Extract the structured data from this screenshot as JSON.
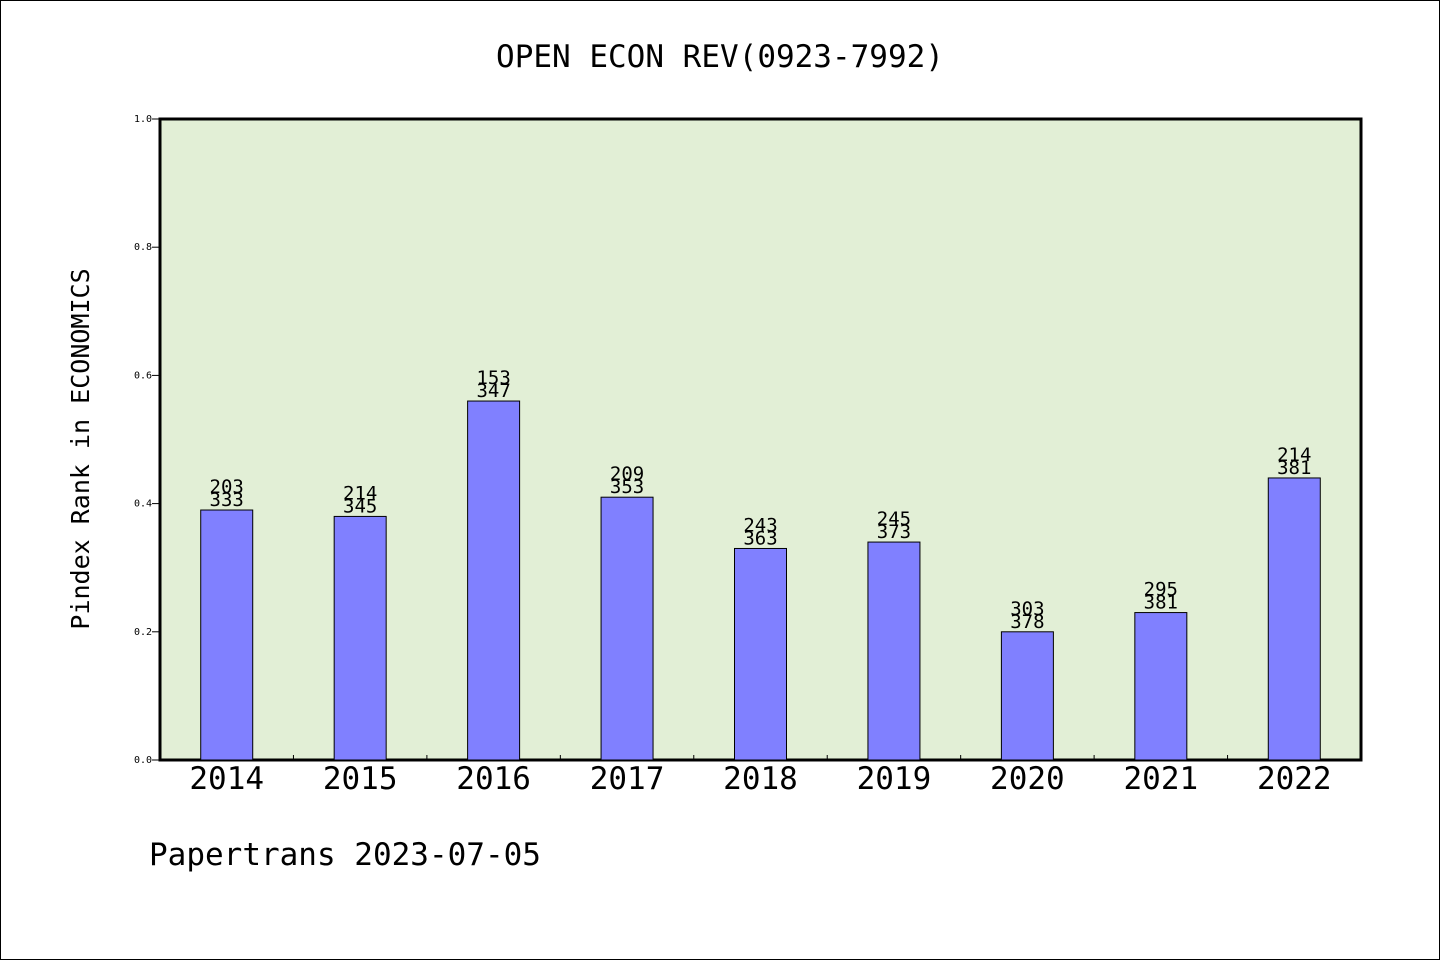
{
  "chart_data": {
    "type": "bar",
    "title": "OPEN ECON REV(0923-7992)",
    "ylabel": "Pindex Rank in ECONOMICS",
    "xlabel": "",
    "categories": [
      "2014",
      "2015",
      "2016",
      "2017",
      "2018",
      "2019",
      "2020",
      "2021",
      "2022"
    ],
    "values": [
      0.39,
      0.38,
      0.56,
      0.41,
      0.33,
      0.34,
      0.2,
      0.23,
      0.44
    ],
    "annotations": [
      {
        "rank": "203",
        "total": "333"
      },
      {
        "rank": "214",
        "total": "345"
      },
      {
        "rank": "153",
        "total": "347"
      },
      {
        "rank": "209",
        "total": "353"
      },
      {
        "rank": "243",
        "total": "363"
      },
      {
        "rank": "245",
        "total": "373"
      },
      {
        "rank": "303",
        "total": "378"
      },
      {
        "rank": "295",
        "total": "381"
      },
      {
        "rank": "214",
        "total": "381"
      }
    ],
    "ylim": [
      0,
      1.0
    ],
    "yticks": [
      "0.0",
      "0.2",
      "0.4",
      "0.6",
      "0.8",
      "1.0"
    ],
    "grid": false,
    "colors": {
      "plot_background": "#e2efd6",
      "bar": "#8080ff",
      "axis": "#000000"
    }
  },
  "footer": {
    "text": "Papertrans 2023-07-05"
  }
}
